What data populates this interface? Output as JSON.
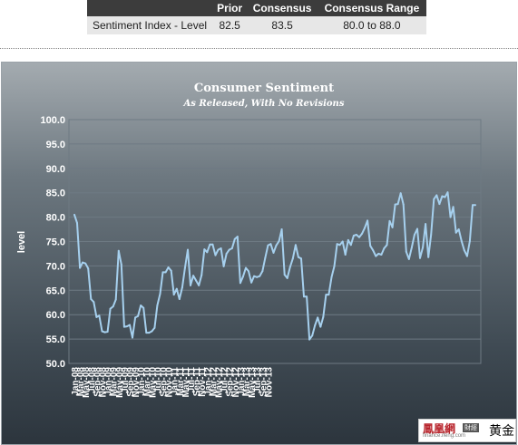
{
  "consensus_table": {
    "headers": [
      "",
      "Prior",
      "Consensus",
      "Consensus Range"
    ],
    "row": {
      "label": "Sentiment Index - Level",
      "prior": "82.5",
      "consensus": "83.5",
      "range": "80.0  to 88.0"
    }
  },
  "watermark": {
    "brand": "鳳凰網",
    "badge": "財經",
    "site": "finance.ifeng.com",
    "tag": "黄金"
  },
  "colors": {
    "line": "#a6d0ee",
    "grid": "#6e7a83",
    "text": "#ffffff"
  },
  "chart_data": {
    "type": "line",
    "title": "Consumer Sentiment",
    "subtitle": "As Released, With No Revisions",
    "xlabel": "",
    "ylabel": "level",
    "ylim": [
      50,
      100
    ],
    "yticks": [
      "100.0",
      "95.0",
      "90.0",
      "85.0",
      "80.0",
      "75.0",
      "70.0",
      "65.0",
      "60.0",
      "55.0",
      "50.0"
    ],
    "xticks": [
      "Jan-08",
      "Mar-08",
      "May-08",
      "Jul-08",
      "Sep-08",
      "Nov-08",
      "Jan-09",
      "Mar-09",
      "May-09",
      "Jul-09",
      "Sep-09",
      "Nov-09",
      "Jan-10",
      "Mar-10",
      "May-10",
      "Jul-10",
      "Sep-10",
      "Nov-10",
      "Jan-11",
      "Mar-11",
      "May-11",
      "Jul-11",
      "Sep-11",
      "Nov-11",
      "Jan-12",
      "Mar-12",
      "May-12",
      "Jul-12",
      "Sep-12",
      "Nov-12",
      "Jan-13",
      "Mar-13",
      "May-13",
      "Jul-13",
      "Sep-13",
      "Nov-13"
    ],
    "grid": true,
    "series": [
      {
        "values": [
          80.5,
          78.8,
          69.6,
          70.7,
          70.5,
          69.5,
          63.2,
          62.6,
          59.5,
          59.8,
          56.6,
          56.4,
          56.5,
          61.2,
          61.7,
          63.1,
          73.1,
          70.3,
          57.5,
          57.6,
          57.9,
          55.3,
          59.4,
          59.7,
          61.9,
          61.4,
          56.3,
          56.3,
          56.6,
          57.3,
          61.9,
          64.3,
          68.7,
          68.7,
          69.7,
          69.0,
          64.1,
          65.3,
          63.2,
          65.6,
          69.6,
          73.3,
          66.0,
          68.0,
          67.0,
          66.0,
          68.1,
          73.4,
          72.8,
          74.4,
          74.4,
          72.2,
          73.3,
          73.6,
          69.9,
          72.5,
          73.3,
          73.6,
          75.5,
          76.0,
          66.5,
          67.8,
          69.6,
          68.9,
          66.6,
          67.9,
          67.7,
          67.9,
          68.9,
          71.6,
          74.2,
          74.5,
          72.7,
          74.2,
          75.1,
          77.5,
          68.2,
          67.5,
          69.8,
          71.5,
          74.3,
          71.8,
          71.5,
          63.7,
          63.7,
          54.9,
          55.7,
          57.8,
          59.4,
          57.5,
          59.5,
          64.1,
          64.1,
          67.7,
          69.9,
          74.5,
          74.3,
          75.0,
          72.3,
          75.3,
          74.3,
          76.2,
          76.4,
          75.9,
          76.6,
          77.8,
          79.3,
          74.1,
          73.2,
          72.0,
          72.5,
          72.3,
          73.6,
          74.3,
          79.2,
          77.9,
          82.6,
          82.7,
          84.9,
          82.6,
          72.9,
          71.4,
          73.8,
          76.4,
          77.6,
          71.6,
          73.8,
          78.6,
          71.8,
          76.4,
          83.7,
          84.5,
          82.7,
          84.3,
          84.1,
          85.1,
          80.0,
          82.1,
          76.8,
          77.5,
          75.1,
          73.2,
          72.0,
          75.1,
          82.5,
          82.5
        ]
      }
    ]
  }
}
